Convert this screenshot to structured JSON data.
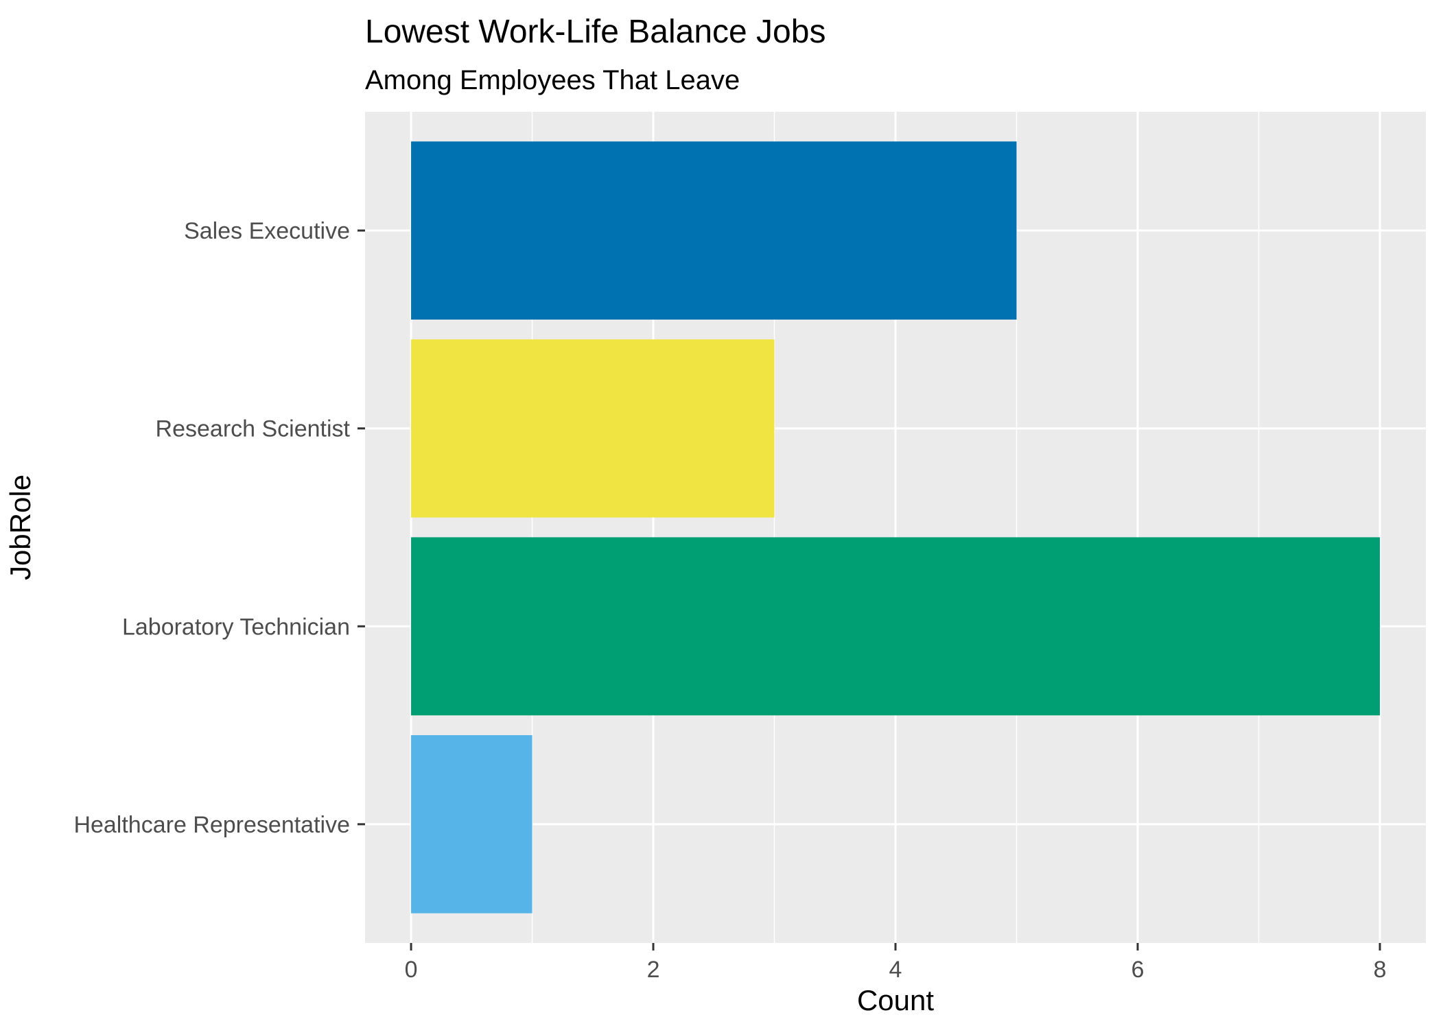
{
  "chart_data": {
    "type": "bar",
    "orientation": "horizontal",
    "title": "Lowest Work-Life Balance Jobs",
    "subtitle": "Among Employees That Leave",
    "xlabel": "Count",
    "ylabel": "JobRole",
    "categories": [
      "Sales Executive",
      "Research Scientist",
      "Laboratory Technician",
      "Healthcare Representative"
    ],
    "values": [
      5,
      3,
      8,
      1
    ],
    "colors": [
      "#0072B2",
      "#F0E442",
      "#009E73",
      "#56B4E9"
    ],
    "xlim": [
      -0.38,
      8.38
    ],
    "xticks": [
      0,
      2,
      4,
      6,
      8
    ],
    "grid": true,
    "legend": "none",
    "panel_background": "#EBEBEB"
  }
}
